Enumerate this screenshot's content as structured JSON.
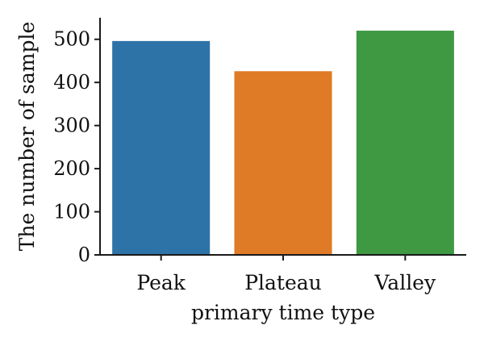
{
  "chart_data": {
    "type": "bar",
    "categories": [
      "Peak",
      "Plateau",
      "Valley"
    ],
    "values": [
      496,
      426,
      520
    ],
    "colors": [
      "#2e73a8",
      "#df7a27",
      "#3e9942"
    ],
    "xlabel": "primary time type",
    "ylabel": "The number of sample",
    "ylim": [
      0,
      550
    ],
    "yticks": [
      0,
      100,
      200,
      300,
      400,
      500
    ],
    "grid": false,
    "legend": "none"
  }
}
